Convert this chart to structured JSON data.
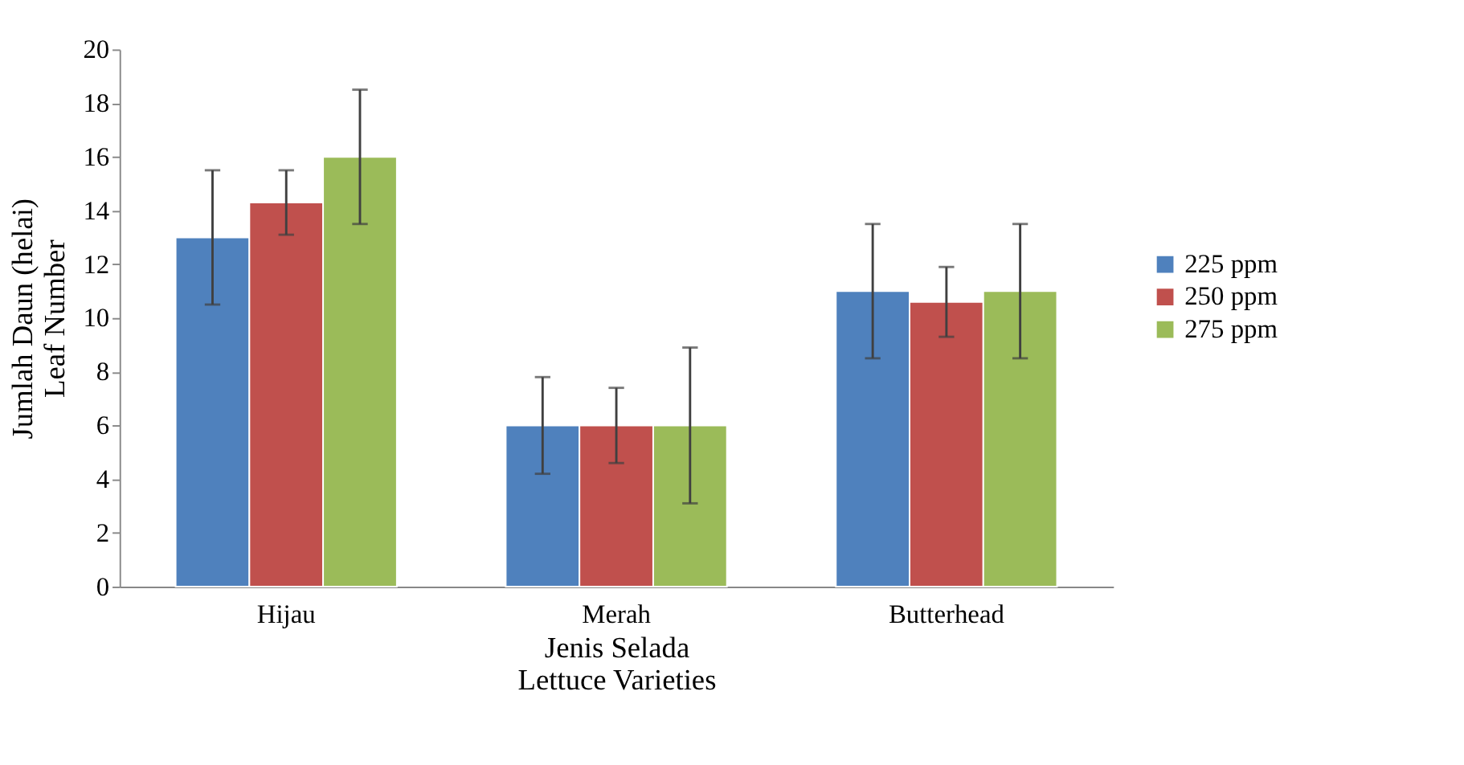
{
  "chart_data": {
    "type": "bar",
    "xlabel": "Jenis Selada\nLettuce Varieties",
    "ylabel": "Jumlah Daun (helai)\nLeaf Number",
    "categories": [
      "Hijau",
      "Merah",
      "Butterhead"
    ],
    "series": [
      {
        "name": "225 ppm",
        "color": "#4f81bd",
        "values": [
          13,
          6,
          11
        ],
        "errors": [
          2.5,
          1.8,
          2.5
        ]
      },
      {
        "name": "250 ppm",
        "color": "#c0504d",
        "values": [
          14.3,
          6,
          10.6
        ],
        "errors": [
          1.2,
          1.4,
          1.3
        ]
      },
      {
        "name": "275 ppm",
        "color": "#9bbb59",
        "values": [
          16,
          6,
          11
        ],
        "errors": [
          2.5,
          2.9,
          2.5
        ]
      }
    ],
    "ylim": [
      0,
      20
    ],
    "yticks": [
      0,
      2,
      4,
      6,
      8,
      10,
      12,
      14,
      16,
      18,
      20
    ],
    "grid": false,
    "legend": "right"
  }
}
